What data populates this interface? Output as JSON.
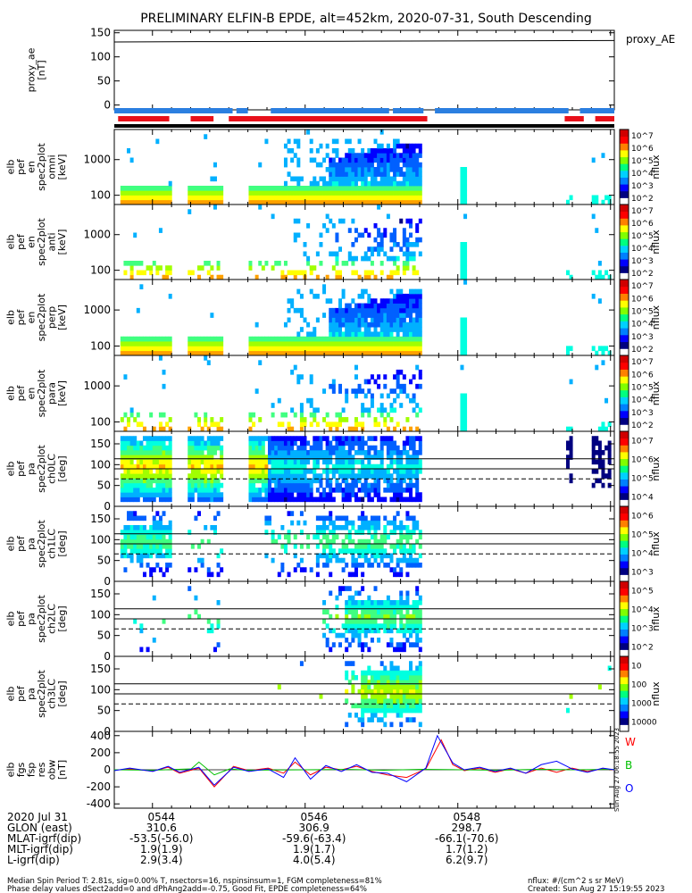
{
  "title": "PRELIMINARY ELFIN-B EPDE, alt=452km, 2020-07-31, South Descending",
  "colors": {
    "status_blue": "#2b7fe0",
    "status_red": "#e8101a",
    "line_blue": "#0000ff",
    "line_red": "#ff0000",
    "line_green": "#00c000"
  },
  "chart_data": [
    {
      "id": "proxy_ae",
      "type": "line",
      "ylabel_lines": [
        "proxy_ae",
        "[nT]"
      ],
      "legend": "proxy_AE",
      "ylim": [
        -10,
        155
      ],
      "yticks": [
        "150",
        "100",
        "50",
        "0"
      ],
      "x_minutes": [
        0,
        1,
        2,
        3,
        4,
        5,
        6
      ],
      "y": [
        131,
        131.5,
        132,
        132.5,
        133,
        133.5,
        134
      ]
    },
    {
      "id": "spec_omni",
      "type": "heatmap",
      "ylabel_lines": [
        "elb",
        "pef",
        "en",
        "spec2plot",
        "omni",
        "[keV]"
      ],
      "yticks": [
        "1000",
        "100"
      ],
      "cbar": {
        "label": "nflux",
        "ticks": [
          "10^2",
          "10^3",
          "10^4",
          "10^5",
          "10^6",
          "10^7"
        ]
      }
    },
    {
      "id": "spec_anti",
      "type": "heatmap",
      "ylabel_lines": [
        "elb",
        "pef",
        "en",
        "spec2plot",
        "anti",
        "[keV]"
      ],
      "yticks": [
        "1000",
        "100"
      ],
      "cbar": {
        "label": "nflux",
        "ticks": [
          "10^2",
          "10^3",
          "10^4",
          "10^5",
          "10^6",
          "10^7"
        ]
      }
    },
    {
      "id": "spec_perp",
      "type": "heatmap",
      "ylabel_lines": [
        "elb",
        "pef",
        "en",
        "spec2plot",
        "perp",
        "[keV]"
      ],
      "yticks": [
        "1000",
        "100"
      ],
      "cbar": {
        "label": "nflux",
        "ticks": [
          "10^2",
          "10^3",
          "10^4",
          "10^5",
          "10^6",
          "10^7"
        ]
      }
    },
    {
      "id": "spec_para",
      "type": "heatmap",
      "ylabel_lines": [
        "elb",
        "pef",
        "en",
        "spec2plot",
        "para",
        "[keV]"
      ],
      "yticks": [
        "1000",
        "100"
      ],
      "cbar": {
        "label": "nflux",
        "ticks": [
          "10^2",
          "10^3",
          "10^4",
          "10^5",
          "10^6",
          "10^7"
        ]
      }
    },
    {
      "id": "pa_ch0",
      "type": "heatmap",
      "ylabel_lines": [
        "elb",
        "pef",
        "pa",
        "spec2plot",
        "ch0LC",
        "[deg]"
      ],
      "yticks": [
        "150",
        "100",
        "50",
        "0"
      ],
      "ylim": [
        0,
        180
      ],
      "cbar": {
        "label": "nflux",
        "ticks": [
          "10^4",
          "10^5",
          "10^6",
          "10^7"
        ]
      }
    },
    {
      "id": "pa_ch1",
      "type": "heatmap",
      "ylabel_lines": [
        "elb",
        "pef",
        "pa",
        "spec2plot",
        "ch1LC",
        "[deg]"
      ],
      "yticks": [
        "150",
        "100",
        "50",
        "0"
      ],
      "ylim": [
        0,
        180
      ],
      "cbar": {
        "label": "nflux",
        "ticks": [
          "10^3",
          "10^4",
          "10^5",
          "10^6"
        ]
      }
    },
    {
      "id": "pa_ch2",
      "type": "heatmap",
      "ylabel_lines": [
        "elb",
        "pef",
        "pa",
        "spec2plot",
        "ch2LC",
        "[deg]"
      ],
      "yticks": [
        "150",
        "100",
        "50",
        "0"
      ],
      "ylim": [
        0,
        180
      ],
      "cbar": {
        "label": "nflux",
        "ticks": [
          "10^2",
          "10^3",
          "10^4",
          "10^5"
        ]
      }
    },
    {
      "id": "pa_ch3",
      "type": "heatmap",
      "ylabel_lines": [
        "elb",
        "pef",
        "pa",
        "spec2plot",
        "ch3LC",
        "[deg]"
      ],
      "yticks": [
        "150",
        "100",
        "50",
        "0"
      ],
      "ylim": [
        0,
        180
      ],
      "cbar": {
        "label": "nflux",
        "ticks": [
          "10000",
          "1000",
          "100",
          "10"
        ]
      }
    },
    {
      "id": "fgs",
      "type": "line",
      "ylabel_lines": [
        "elb",
        "fgs",
        "fsp",
        "res",
        "obw",
        "[nT]"
      ],
      "ylim": [
        -450,
        450
      ],
      "yticks": [
        "400",
        "200",
        "0",
        "-200",
        "-400"
      ],
      "legend_letters": [
        "W",
        "B",
        "O"
      ],
      "series": [
        {
          "name": "W",
          "color": "#ff0000",
          "x_minutes": [
            0,
            0.2,
            0.5,
            0.7,
            0.85,
            1.1,
            1.3,
            1.55,
            1.75,
            2.0,
            2.2,
            2.35,
            2.55,
            2.75,
            2.95,
            3.15,
            3.35,
            3.55,
            3.8,
            4.05,
            4.25,
            4.4,
            4.55,
            4.75,
            4.95,
            5.15,
            5.35,
            5.55,
            5.75,
            5.95,
            6.15,
            6.35,
            6.5
          ],
          "y": [
            -5,
            10,
            -15,
            30,
            -40,
            20,
            -200,
            40,
            -10,
            20,
            -40,
            90,
            -60,
            30,
            0,
            40,
            -20,
            -60,
            -90,
            10,
            350,
            60,
            -10,
            20,
            -30,
            10,
            -40,
            20,
            -30,
            20,
            -20,
            10,
            0
          ]
        },
        {
          "name": "B",
          "color": "#00c000",
          "x_minutes": [
            0,
            0.5,
            1.0,
            1.1,
            1.3,
            1.5,
            1.7,
            2.5,
            3.0,
            3.5,
            4.0,
            4.5,
            5.0,
            5.5,
            6.0,
            6.5
          ],
          "y": [
            0,
            -5,
            10,
            90,
            -60,
            10,
            -5,
            0,
            5,
            -5,
            5,
            0,
            -5,
            5,
            0,
            5
          ]
        },
        {
          "name": "O",
          "color": "#0000ff",
          "x_minutes": [
            0,
            0.2,
            0.5,
            0.7,
            0.85,
            1.1,
            1.3,
            1.55,
            1.75,
            2.0,
            2.2,
            2.35,
            2.55,
            2.75,
            2.95,
            3.15,
            3.35,
            3.55,
            3.8,
            4.05,
            4.2,
            4.4,
            4.55,
            4.75,
            4.95,
            5.15,
            5.35,
            5.55,
            5.75,
            5.95,
            6.15,
            6.35,
            6.5
          ],
          "y": [
            -10,
            20,
            -20,
            40,
            -30,
            30,
            -180,
            30,
            -20,
            10,
            -90,
            140,
            -110,
            50,
            -20,
            60,
            -30,
            -40,
            -140,
            20,
            400,
            80,
            0,
            30,
            -20,
            20,
            -40,
            60,
            100,
            10,
            -30,
            20,
            0
          ]
        }
      ]
    }
  ],
  "x_axis": {
    "tick_labels": [
      "0544",
      "0546",
      "0548"
    ],
    "rows": [
      {
        "label": "2020 Jul 31",
        "values": [
          "0544",
          "0546",
          "0548"
        ]
      },
      {
        "label": "GLON (east)",
        "values": [
          "310.6",
          "306.9",
          "298.7"
        ]
      },
      {
        "label": "MLAT-igrf(dip)",
        "values": [
          "-53.5(-56.0)",
          "-59.6(-63.4)",
          "-66.1(-70.6)"
        ]
      },
      {
        "label": "MLT-igrf(dip)",
        "values": [
          "1.9(1.9)",
          "1.9(1.7)",
          "1.7(1.2)"
        ]
      },
      {
        "label": "L-igrf(dip)",
        "values": [
          "2.9(3.4)",
          "4.0(5.4)",
          "6.2(9.7)"
        ]
      }
    ]
  },
  "footer": {
    "line1": "Median Spin Period T: 2.81s, sig=0.00% T, nsectors=16, nspinsinsum=1, FGM completeness=81%",
    "line2": "Phase delay values dSect2add=0 and dPhAng2add=-0.75, Good Fit, EPDE completeness=64%",
    "units": "nflux: #/(cm^2 s sr MeV)",
    "created": "Created: Sun Aug 27 15:19:55 2023",
    "side_stamp": "Sun Aug 27 06:18:55 2023"
  }
}
